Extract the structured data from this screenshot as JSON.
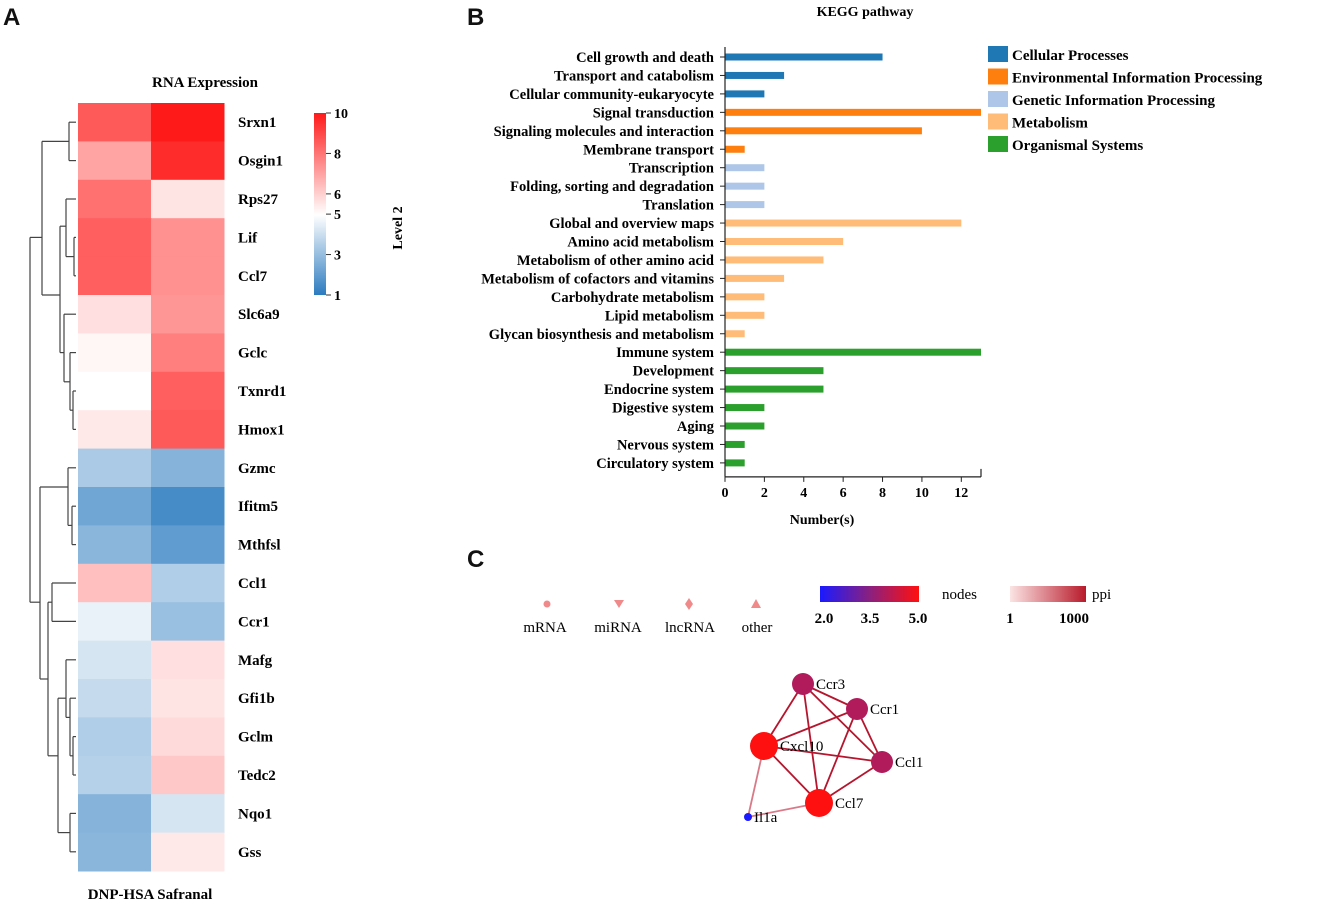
{
  "panels": {
    "a": "A",
    "b": "B",
    "c": "C"
  },
  "heatmap": {
    "title": "RNA Expression",
    "xlabel": "DNP-HSA Safranal",
    "colorbar_ticks": [
      1,
      3,
      5,
      6,
      8,
      10
    ],
    "colorbar_min": 1,
    "colorbar_max": 10,
    "colors": {
      "low": "#2b7bbf",
      "mid": "#ffffff",
      "high": "#ff1a1a"
    },
    "genes": [
      "Srxn1",
      "Osgin1",
      "Rps27",
      "Lif",
      "Ccl7",
      "Slc6a9",
      "Gclc",
      "Txnrd1",
      "Hmox1",
      "Gzmc",
      "Ifitm5",
      "Mthfsl",
      "Ccl1",
      "Ccr1",
      "Mafg",
      "Gfi1b",
      "Gclm",
      "Tedc2",
      "Nqo1",
      "Gss"
    ],
    "values": [
      [
        8.6,
        10
      ],
      [
        7.0,
        9.6
      ],
      [
        8.1,
        5.6
      ],
      [
        8.5,
        7.4
      ],
      [
        8.5,
        7.4
      ],
      [
        5.7,
        7.3
      ],
      [
        5.2,
        7.8
      ],
      [
        5.0,
        8.5
      ],
      [
        5.5,
        8.6
      ],
      [
        3.4,
        2.7
      ],
      [
        2.3,
        1.5
      ],
      [
        2.8,
        2.0
      ],
      [
        6.4,
        3.5
      ],
      [
        4.6,
        3.1
      ],
      [
        4.2,
        5.7
      ],
      [
        3.9,
        5.6
      ],
      [
        3.5,
        5.8
      ],
      [
        3.6,
        6.2
      ],
      [
        2.7,
        4.2
      ],
      [
        2.8,
        5.5
      ]
    ]
  },
  "chart_data": [
    {
      "type": "bar",
      "title": "KEGG pathway",
      "xlabel": "Number(s)",
      "ylabel": "Level 2",
      "xlim": [
        0,
        13
      ],
      "xticks": [
        0,
        2,
        4,
        6,
        8,
        10,
        12
      ],
      "categories": [
        "Cell growth and death",
        "Transport and catabolism",
        "Cellular community-eukaryocyte",
        "Signal transduction",
        "Signaling molecules and interaction",
        "Membrane transport",
        "Transcription",
        "Folding, sorting and degradation",
        "Translation",
        "Global and overview maps",
        "Amino acid metabolism",
        "Metabolism of other amino acid",
        "Metabolism of cofactors and vitamins",
        "Carbohydrate metabolism",
        "Lipid metabolism",
        "Glycan biosynthesis and metabolism",
        "Immune system",
        "Development",
        "Endocrine system",
        "Digestive system",
        "Aging",
        "Nervous system",
        "Circulatory system"
      ],
      "values": [
        8,
        3,
        2,
        13,
        10,
        1,
        2,
        2,
        2,
        12,
        6,
        5,
        3,
        2,
        2,
        1,
        13,
        5,
        5,
        2,
        2,
        1,
        1
      ],
      "groups": [
        0,
        0,
        0,
        1,
        1,
        1,
        2,
        2,
        2,
        3,
        3,
        3,
        3,
        3,
        3,
        3,
        4,
        4,
        4,
        4,
        4,
        4,
        4
      ],
      "legend": [
        {
          "name": "Cellular Processes",
          "color": "#1f77b4"
        },
        {
          "name": "Environmental Information Processing",
          "color": "#ff7f0e"
        },
        {
          "name": "Genetic Information Processing",
          "color": "#aec7e8"
        },
        {
          "name": "Metabolism",
          "color": "#ffbb78"
        },
        {
          "name": "Organismal Systems",
          "color": "#2ca02c"
        }
      ]
    },
    {
      "type": "network",
      "legend_shapes": [
        "mRNA",
        "miRNA",
        "lncRNA",
        "other"
      ],
      "nodes_label": "nodes",
      "nodes_scale": [
        "2.0",
        "3.5",
        "5.0"
      ],
      "ppi_label": "ppi",
      "ppi_scale": [
        "1",
        "1000"
      ],
      "nodes": [
        {
          "id": "Ccr3",
          "degree": 4
        },
        {
          "id": "Ccr1",
          "degree": 4
        },
        {
          "id": "Cxcl10",
          "degree": 5
        },
        {
          "id": "Ccl1",
          "degree": 4
        },
        {
          "id": "Ccl7",
          "degree": 5
        },
        {
          "id": "Il1a",
          "degree": 2
        }
      ],
      "edges": [
        [
          "Ccr3",
          "Ccr1"
        ],
        [
          "Ccr3",
          "Cxcl10"
        ],
        [
          "Ccr3",
          "Ccl1"
        ],
        [
          "Ccr3",
          "Ccl7"
        ],
        [
          "Ccr1",
          "Cxcl10"
        ],
        [
          "Ccr1",
          "Ccl1"
        ],
        [
          "Ccr1",
          "Ccl7"
        ],
        [
          "Cxcl10",
          "Ccl1"
        ],
        [
          "Cxcl10",
          "Ccl7"
        ],
        [
          "Cxcl10",
          "Il1a"
        ],
        [
          "Ccl1",
          "Ccl7"
        ],
        [
          "Ccl7",
          "Il1a"
        ]
      ]
    }
  ]
}
